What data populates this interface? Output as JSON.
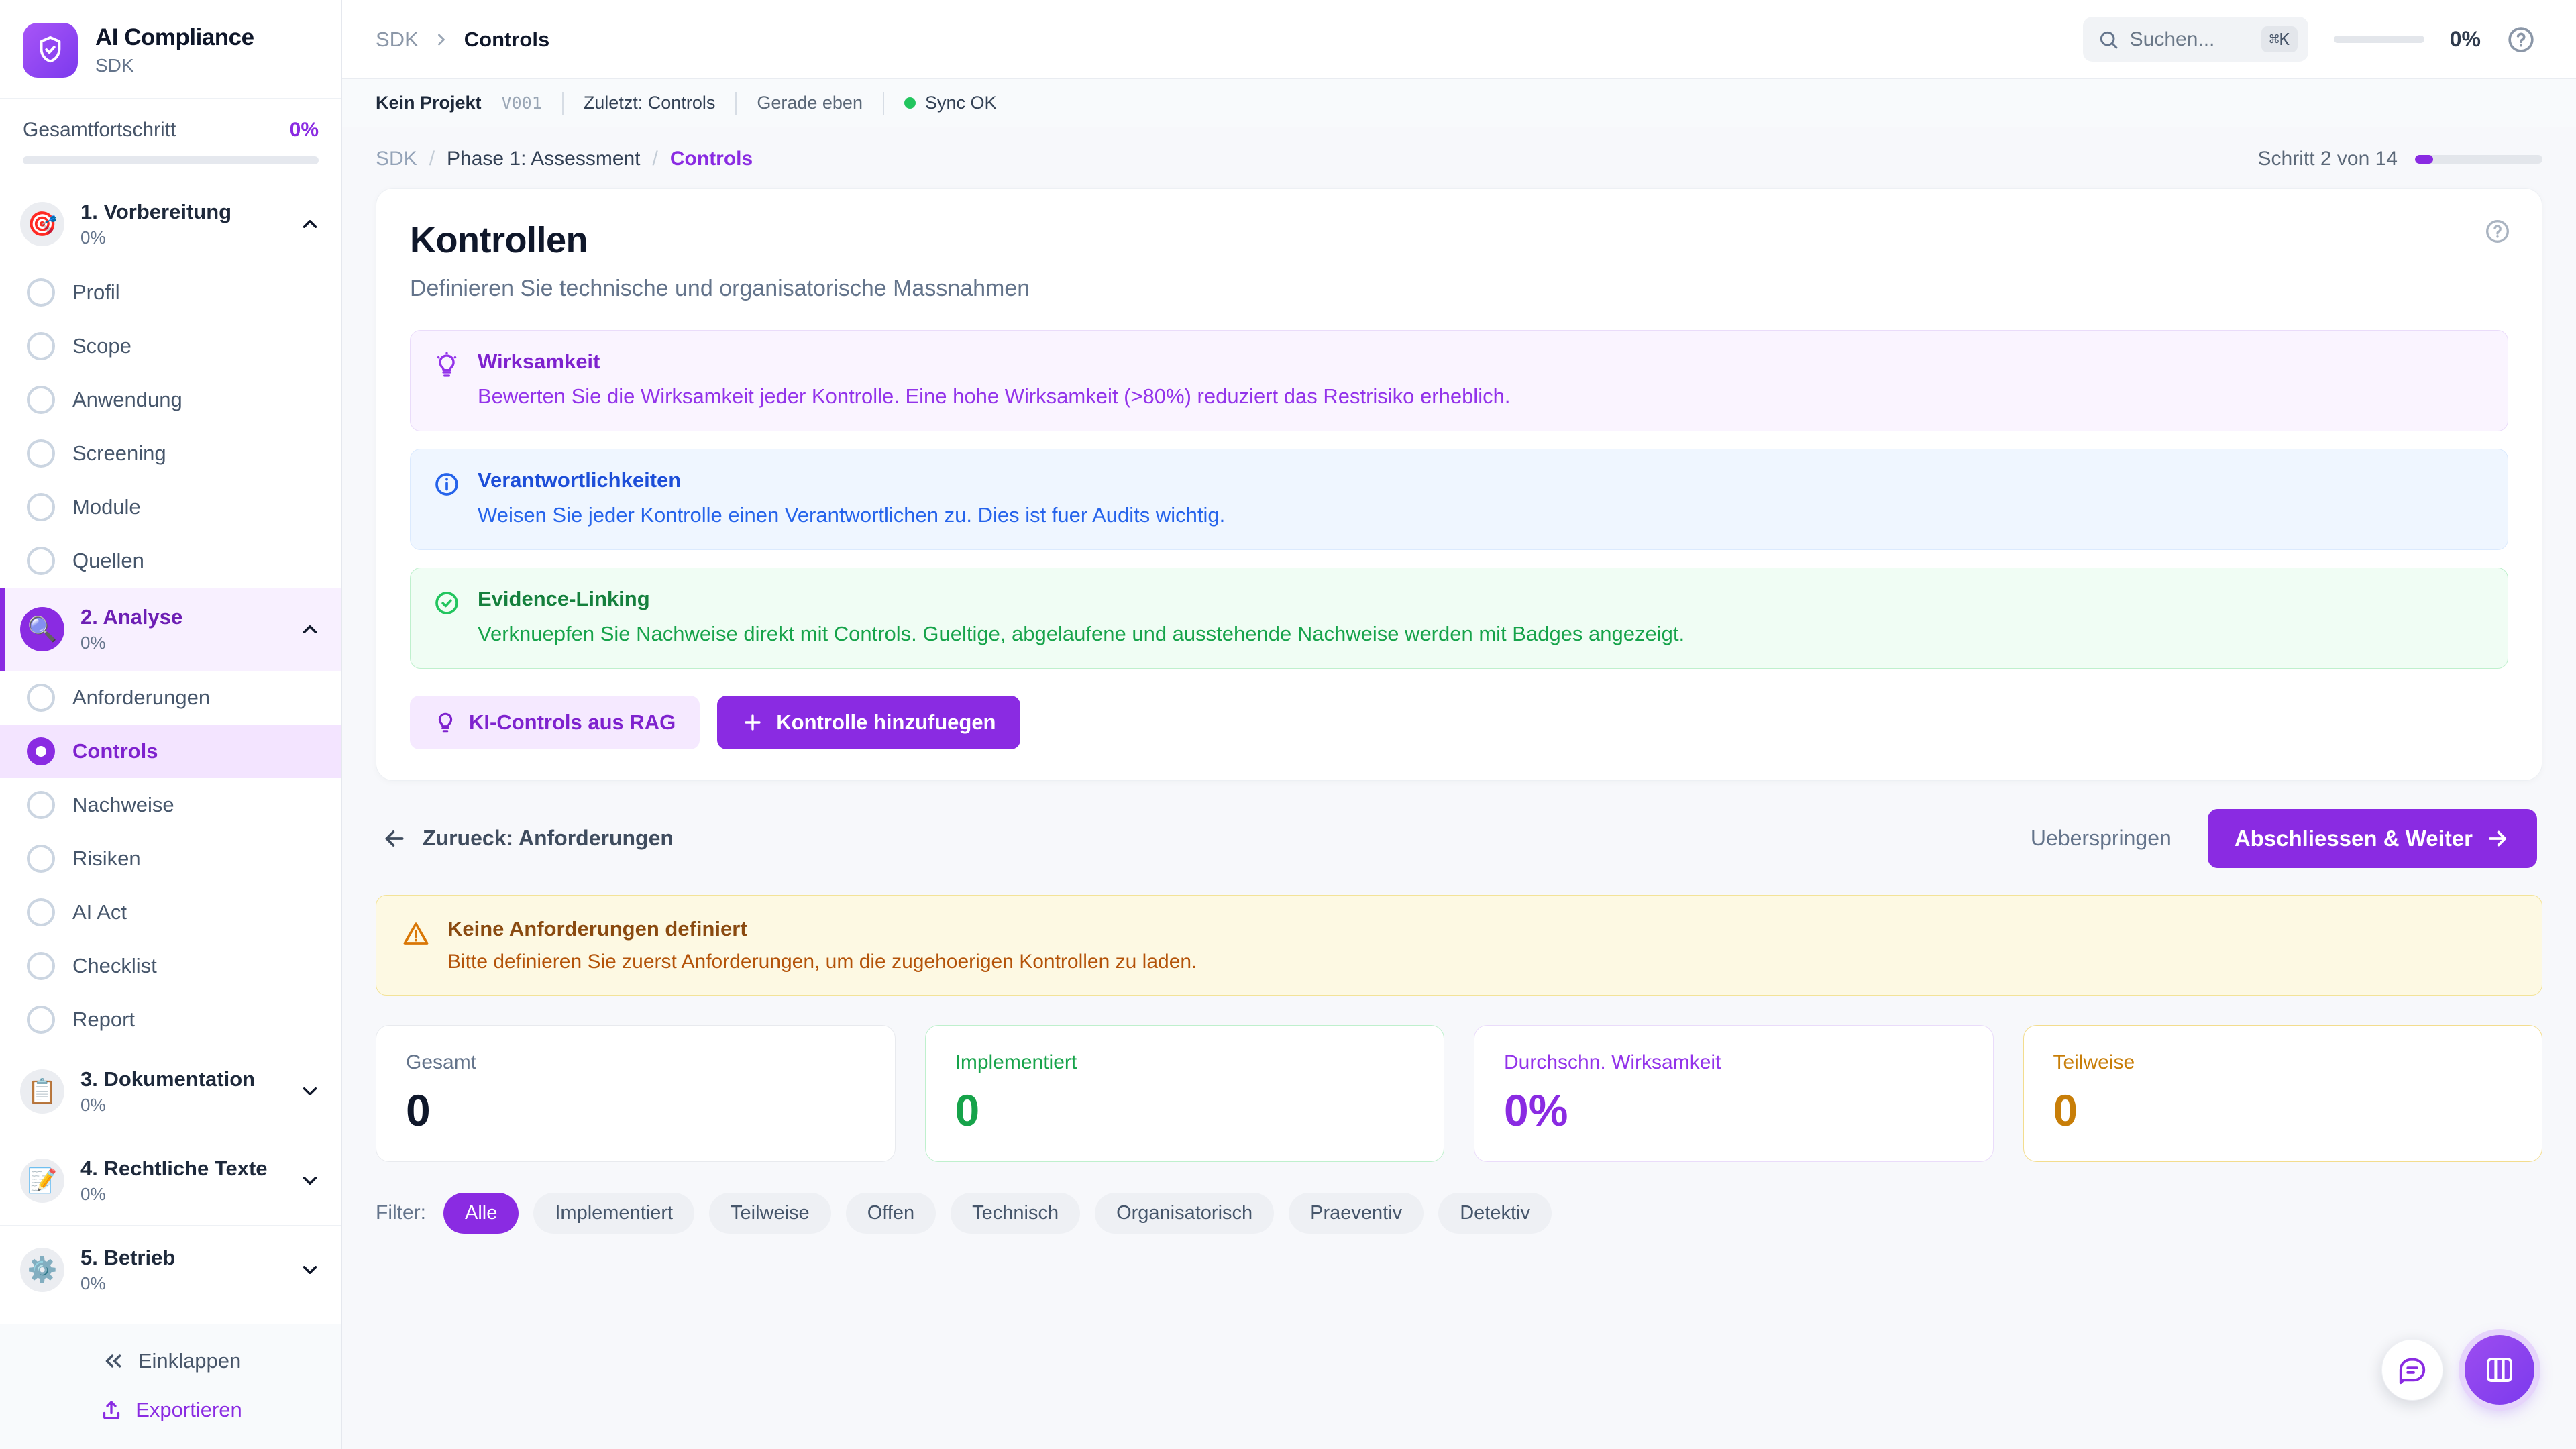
{
  "sidebar": {
    "app_title": "AI Compliance",
    "app_subtitle": "SDK",
    "overall_label": "Gesamtfortschritt",
    "overall_value": "0%",
    "sections": [
      {
        "name": "1. Vorbereitung",
        "pct": "0%",
        "icon": "🎯",
        "items": [
          {
            "label": "Profil"
          },
          {
            "label": "Scope"
          },
          {
            "label": "Anwendung"
          },
          {
            "label": "Screening"
          },
          {
            "label": "Module"
          },
          {
            "label": "Quellen"
          }
        ]
      },
      {
        "name": "2. Analyse",
        "pct": "0%",
        "icon": "🔍",
        "items": [
          {
            "label": "Anforderungen"
          },
          {
            "label": "Controls"
          },
          {
            "label": "Nachweise"
          },
          {
            "label": "Risiken"
          },
          {
            "label": "AI Act"
          },
          {
            "label": "Checklist"
          },
          {
            "label": "Report"
          }
        ]
      },
      {
        "name": "3. Dokumentation",
        "pct": "0%",
        "icon": "📋"
      },
      {
        "name": "4. Rechtliche Texte",
        "pct": "0%",
        "icon": "📝"
      },
      {
        "name": "5. Betrieb",
        "pct": "0%",
        "icon": "⚙️"
      }
    ],
    "collapse_label": "Einklappen",
    "export_label": "Exportieren"
  },
  "topbar": {
    "crumb_root": "SDK",
    "crumb_current": "Controls",
    "search_placeholder": "Suchen...",
    "search_shortcut": "⌘K",
    "progress_value": "0%",
    "help_glyph": "?"
  },
  "statusbar": {
    "project": "Kein Projekt",
    "version": "V001",
    "last": "Zuletzt: Controls",
    "time": "Gerade eben",
    "sync": "Sync OK"
  },
  "page": {
    "crumb_root": "SDK",
    "crumb_phase": "Phase 1: Assessment",
    "crumb_current": "Controls",
    "step_label": "Schritt 2 von 14",
    "step_percent": 14
  },
  "card": {
    "title": "Kontrollen",
    "subtitle": "Definieren Sie technische und organisatorische Massnahmen",
    "help_glyph": "?",
    "infoboxes": [
      {
        "title": "Wirksamkeit",
        "text": "Bewerten Sie die Wirksamkeit jeder Kontrolle. Eine hohe Wirksamkeit (>80%) reduziert das Restrisiko erheblich."
      },
      {
        "title": "Verantwortlichkeiten",
        "text": "Weisen Sie jeder Kontrolle einen Verantwortlichen zu. Dies ist fuer Audits wichtig."
      },
      {
        "title": "Evidence-Linking",
        "text": "Verknuepfen Sie Nachweise direkt mit Controls. Gueltige, abgelaufene und ausstehende Nachweise werden mit Badges angezeigt."
      }
    ],
    "ai_button": "KI-Controls aus RAG",
    "add_button": "Kontrolle hinzufuegen"
  },
  "wizard": {
    "back": "Zurueck: Anforderungen",
    "skip": "Ueberspringen",
    "next": "Abschliessen & Weiter"
  },
  "warning": {
    "title": "Keine Anforderungen definiert",
    "text": "Bitte definieren Sie zuerst Anforderungen, um die zugehoerigen Kontrollen zu laden."
  },
  "stats": [
    {
      "label": "Gesamt",
      "value": "0"
    },
    {
      "label": "Implementiert",
      "value": "0"
    },
    {
      "label": "Durchschn. Wirksamkeit",
      "value": "0%"
    },
    {
      "label": "Teilweise",
      "value": "0"
    }
  ],
  "filters": {
    "label": "Filter:",
    "options": [
      "Alle",
      "Implementiert",
      "Teilweise",
      "Offen",
      "Technisch",
      "Organisatorisch",
      "Praeventiv",
      "Detektiv"
    ],
    "active": "Alle"
  },
  "colors": {
    "accent": "#8a2be2",
    "green": "#22c55e",
    "amber": "#c87e08",
    "blue": "#2563eb"
  }
}
